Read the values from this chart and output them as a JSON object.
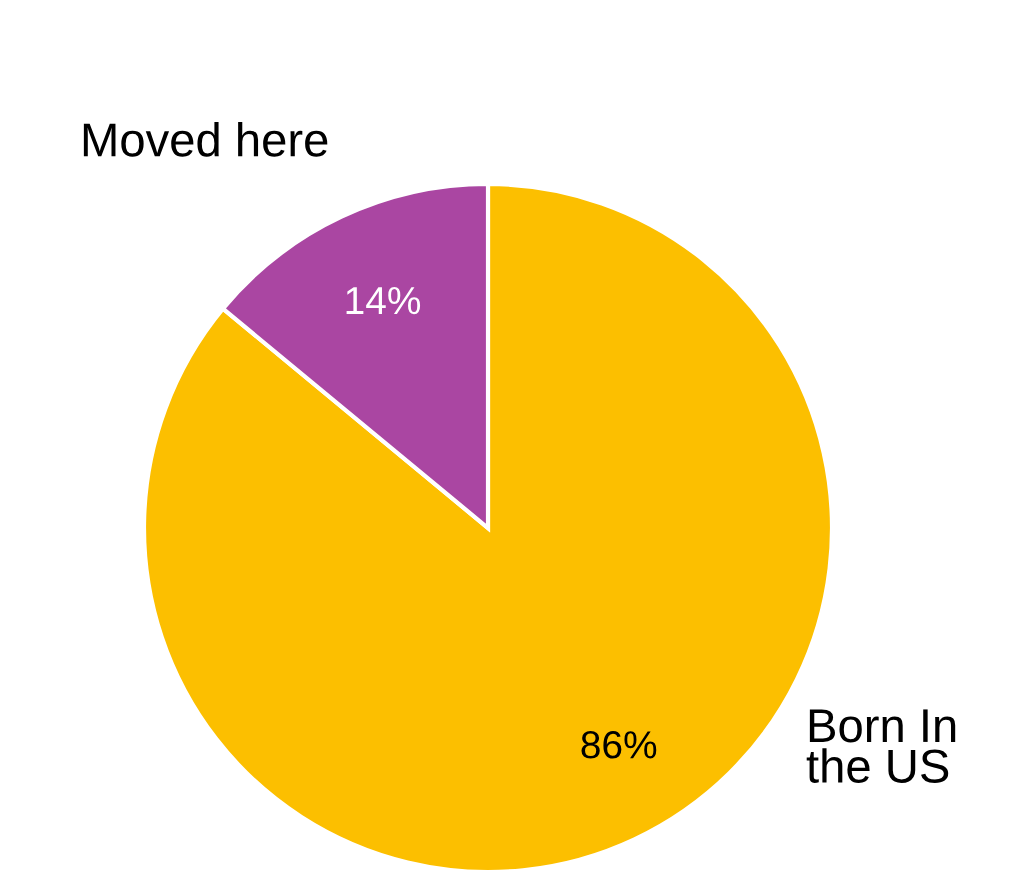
{
  "chart_data": {
    "type": "pie",
    "categories": [
      "Born In the US",
      "Moved here"
    ],
    "values": [
      86,
      14
    ],
    "colors": [
      "#fcbf00",
      "#aa46a2"
    ],
    "value_labels": [
      "86%",
      "14%"
    ]
  }
}
